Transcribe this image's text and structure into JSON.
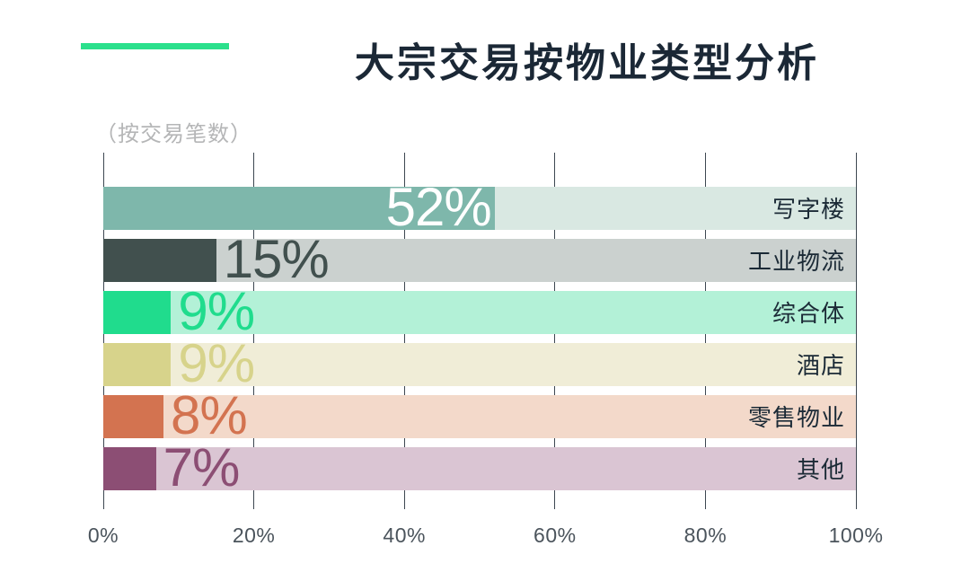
{
  "header": {
    "title": "大宗交易按物业类型分析",
    "subtitle": "（按交易笔数）"
  },
  "colors": {
    "accent": "#2be08c",
    "title": "#1b2836",
    "subtitle": "#b5b6b7",
    "grid": "#3d4751",
    "tick_label": "#4b545c",
    "category_label": "#1b2a36",
    "background": "#ffffff"
  },
  "chart_data": {
    "type": "bar",
    "orientation": "horizontal",
    "title": "大宗交易按物业类型分析",
    "subtitle": "（按交易笔数）",
    "categories": [
      "写字楼",
      "工业物流",
      "综合体",
      "酒店",
      "零售物业",
      "其他"
    ],
    "values": [
      52,
      15,
      9,
      9,
      8,
      7
    ],
    "value_labels": [
      "52%",
      "15%",
      "9%",
      "9%",
      "8%",
      "7%"
    ],
    "value_label_inside": [
      true,
      false,
      false,
      false,
      false,
      false
    ],
    "value_label_colors": [
      "#ffffff",
      "#41504e",
      "#20dc8d",
      "#d7d38b",
      "#d37350",
      "#8c4e74"
    ],
    "bar_colors": [
      "#7eb7ab",
      "#41504e",
      "#20dc8d",
      "#d7d38b",
      "#d37350",
      "#8c4e74"
    ],
    "track_colors": [
      "#d9e8e2",
      "#cbd1cf",
      "#b3f1d7",
      "#f0edd7",
      "#f3d9ca",
      "#dac5d3"
    ],
    "x_ticks": [
      "0%",
      "20%",
      "40%",
      "60%",
      "80%",
      "100%"
    ],
    "x_tick_values": [
      0,
      20,
      40,
      60,
      80,
      100
    ],
    "xlim": [
      0,
      100
    ],
    "grid": true,
    "legend_position": "none"
  }
}
